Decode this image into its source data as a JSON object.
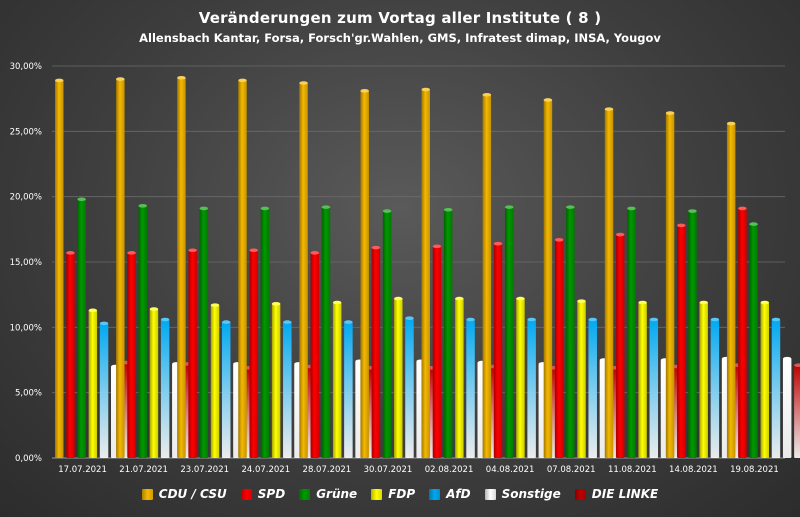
{
  "chart_data": {
    "type": "bar",
    "title": "Veränderungen zum Vortag aller Institute ( 8 )",
    "subtitle": "Allensbach Kantar, Forsa, Forsch'gr.Wahlen, GMS, Infratest dimap, INSA, Yougov",
    "xlabel": "",
    "ylabel": "",
    "ylim": [
      0,
      30
    ],
    "yticks": [
      "0,00%",
      "5,00%",
      "10,00%",
      "15,00%",
      "20,00%",
      "25,00%",
      "30,00%"
    ],
    "grid": true,
    "legend_position": "bottom",
    "categories": [
      "17.07.2021",
      "21.07.2021",
      "23.07.2021",
      "24.07.2021",
      "28.07.2021",
      "30.07.2021",
      "02.08.2021",
      "04.08.2021",
      "07.08.2021",
      "11.08.2021",
      "14.08.2021",
      "19.08.2021"
    ],
    "series": [
      {
        "name": "CDU / CSU",
        "color": "#f5b800",
        "values": [
          28.9,
          29.0,
          29.1,
          28.9,
          28.7,
          28.1,
          28.2,
          27.8,
          27.4,
          26.7,
          26.4,
          25.6
        ]
      },
      {
        "name": "SPD",
        "color": "#ff0000",
        "values": [
          15.7,
          15.7,
          15.9,
          15.9,
          15.7,
          16.1,
          16.2,
          16.4,
          16.7,
          17.1,
          17.8,
          19.1
        ]
      },
      {
        "name": "Grüne",
        "color": "#009900",
        "values": [
          19.8,
          19.3,
          19.1,
          19.1,
          19.2,
          18.9,
          19.0,
          19.2,
          19.2,
          19.1,
          18.9,
          17.9
        ]
      },
      {
        "name": "FDP",
        "color": "#ffff00",
        "values": [
          11.3,
          11.4,
          11.7,
          11.8,
          11.9,
          12.2,
          12.2,
          12.2,
          12.0,
          11.9,
          11.9,
          11.9
        ]
      },
      {
        "name": "AfD",
        "color": "#00a8f0",
        "values": [
          10.3,
          10.6,
          10.4,
          10.4,
          10.4,
          10.7,
          10.6,
          10.6,
          10.6,
          10.6,
          10.6,
          10.6
        ]
      },
      {
        "name": "Sonstige",
        "color": "#ffffff",
        "values": [
          7.0,
          7.2,
          7.2,
          7.2,
          7.4,
          7.4,
          7.3,
          7.2,
          7.5,
          7.5,
          7.6,
          7.6
        ]
      },
      {
        "name": "DIE LINKE",
        "color": "#c00000",
        "values": [
          7.3,
          7.2,
          6.9,
          7.0,
          6.9,
          6.9,
          7.0,
          6.9,
          6.9,
          7.0,
          7.1,
          7.1
        ]
      }
    ]
  }
}
